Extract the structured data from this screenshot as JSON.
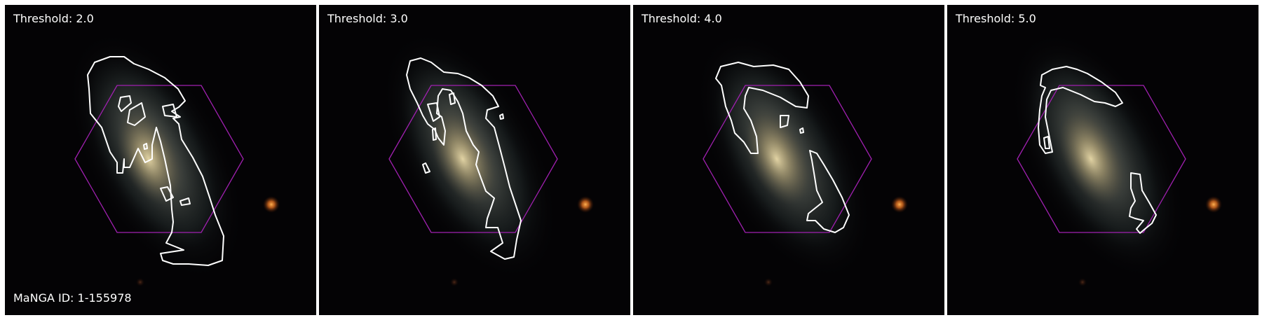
{
  "manga_id_label": "MaNGA ID: 1-155978",
  "panels": [
    {
      "threshold_label": "Threshold: 2.0"
    },
    {
      "threshold_label": "Threshold: 3.0"
    },
    {
      "threshold_label": "Threshold: 4.0"
    },
    {
      "threshold_label": "Threshold: 5.0"
    }
  ],
  "colors": {
    "background": "#040305",
    "contour": "#ffffff",
    "hexagon": "#a020b0",
    "galaxy_core": "#e8d9a8",
    "star": "#ff9a3a"
  }
}
